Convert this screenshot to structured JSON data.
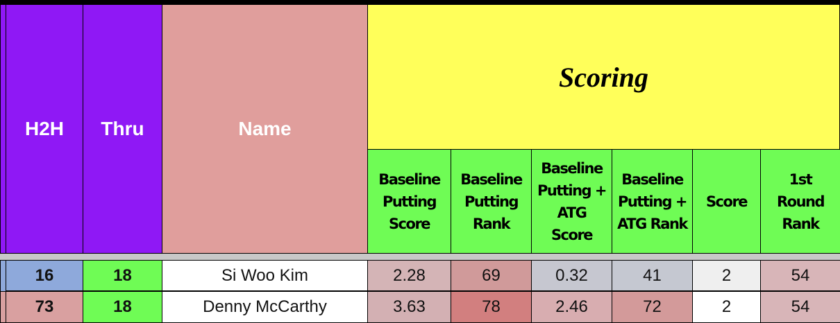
{
  "header": {
    "columns": [
      "H2H",
      "Thru",
      "Name"
    ],
    "group": "Scoring",
    "subcolumns": [
      "Baseline Putting Score",
      "Baseline Putting Rank",
      "Baseline Putting + ATG Score",
      "Baseline Putting + ATG Rank",
      "Score",
      "1st Round Rank"
    ]
  },
  "table": {
    "rows": [
      [
        16,
        18,
        "Si Woo Kim",
        2.28,
        69,
        0.32,
        41,
        2,
        54
      ],
      [
        73,
        18,
        "Denny McCarthy",
        3.63,
        78,
        2.46,
        72,
        2,
        54
      ]
    ]
  }
}
